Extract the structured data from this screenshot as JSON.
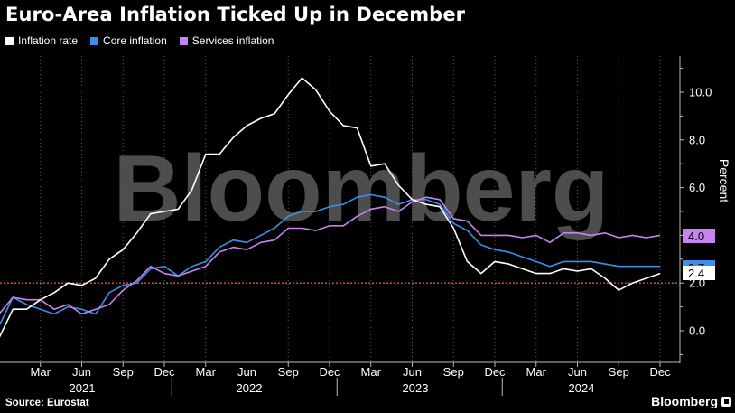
{
  "title": "Euro-Area Inflation Ticked Up in December",
  "source": "Source: Eurostat",
  "brand": "Bloomberg",
  "watermark": "Bloomberg",
  "colors": {
    "background": "#000000",
    "inflation": "#ffffff",
    "core": "#3a8fe8",
    "services": "#c784f0",
    "target_line": "#e4572e",
    "grid": "#5a5a5a"
  },
  "chart_data": {
    "type": "line",
    "title": "Euro-Area Inflation Ticked Up in December",
    "xlabel": "",
    "ylabel": "Percent",
    "ylim": [
      -1.3,
      11.8
    ],
    "yticks": [
      0.0,
      2.0,
      4.0,
      6.0,
      8.0,
      10.0
    ],
    "ytick_labels": [
      "0.0",
      "2.0",
      "4.0",
      "6.0",
      "8.0",
      "10.0"
    ],
    "x_tick_labels": [
      "Mar",
      "Jun",
      "Sep",
      "Dec",
      "Mar",
      "Jun",
      "Sep",
      "Dec",
      "Mar",
      "Jun",
      "Sep",
      "Dec",
      "Mar",
      "Jun",
      "Sep",
      "Dec"
    ],
    "year_labels": [
      "2021",
      "2022",
      "2023",
      "2024"
    ],
    "x": [
      "2020-12",
      "2021-01",
      "2021-02",
      "2021-03",
      "2021-04",
      "2021-05",
      "2021-06",
      "2021-07",
      "2021-08",
      "2021-09",
      "2021-10",
      "2021-11",
      "2021-12",
      "2022-01",
      "2022-02",
      "2022-03",
      "2022-04",
      "2022-05",
      "2022-06",
      "2022-07",
      "2022-08",
      "2022-09",
      "2022-10",
      "2022-11",
      "2022-12",
      "2023-01",
      "2023-02",
      "2023-03",
      "2023-04",
      "2023-05",
      "2023-06",
      "2023-07",
      "2023-08",
      "2023-09",
      "2023-10",
      "2023-11",
      "2023-12",
      "2024-01",
      "2024-02",
      "2024-03",
      "2024-04",
      "2024-05",
      "2024-06",
      "2024-07",
      "2024-08",
      "2024-09",
      "2024-10",
      "2024-11",
      "2024-12"
    ],
    "reference_line": 2.0,
    "series": [
      {
        "name": "Inflation rate",
        "color": "#ffffff",
        "values": [
          -0.3,
          0.9,
          0.9,
          1.3,
          1.6,
          2.0,
          1.9,
          2.2,
          3.0,
          3.4,
          4.1,
          4.9,
          5.0,
          5.1,
          5.9,
          7.4,
          7.4,
          8.1,
          8.6,
          8.9,
          9.1,
          9.9,
          10.6,
          10.1,
          9.2,
          8.6,
          8.5,
          6.9,
          7.0,
          6.1,
          5.5,
          5.3,
          5.2,
          4.3,
          2.9,
          2.4,
          2.9,
          2.8,
          2.6,
          2.4,
          2.4,
          2.6,
          2.5,
          2.6,
          2.2,
          1.7,
          2.0,
          2.2,
          2.4
        ]
      },
      {
        "name": "Core inflation",
        "color": "#3a8fe8",
        "values": [
          0.2,
          1.4,
          1.1,
          0.9,
          0.7,
          1.0,
          0.9,
          0.7,
          1.6,
          1.9,
          2.0,
          2.6,
          2.7,
          2.3,
          2.7,
          2.9,
          3.5,
          3.8,
          3.7,
          4.0,
          4.3,
          4.8,
          5.0,
          5.0,
          5.2,
          5.3,
          5.6,
          5.7,
          5.6,
          5.3,
          5.5,
          5.5,
          5.3,
          4.5,
          4.2,
          3.6,
          3.4,
          3.3,
          3.1,
          2.9,
          2.7,
          2.9,
          2.9,
          2.9,
          2.8,
          2.7,
          2.7,
          2.7,
          2.7
        ]
      },
      {
        "name": "Services inflation",
        "color": "#c784f0",
        "values": [
          0.7,
          1.4,
          1.3,
          1.3,
          0.9,
          1.1,
          0.7,
          0.9,
          1.1,
          1.7,
          2.1,
          2.7,
          2.4,
          2.3,
          2.5,
          2.7,
          3.3,
          3.5,
          3.4,
          3.7,
          3.8,
          4.3,
          4.3,
          4.2,
          4.4,
          4.4,
          4.8,
          5.1,
          5.2,
          5.0,
          5.4,
          5.6,
          5.5,
          4.7,
          4.6,
          4.0,
          4.0,
          4.0,
          3.9,
          4.0,
          3.7,
          4.1,
          4.1,
          4.0,
          4.1,
          3.9,
          4.0,
          3.9,
          4.0
        ]
      }
    ],
    "end_labels": [
      "2.7",
      "2.4",
      "4.0"
    ],
    "grid": "vertical dotted",
    "legend_position": "top-left"
  }
}
